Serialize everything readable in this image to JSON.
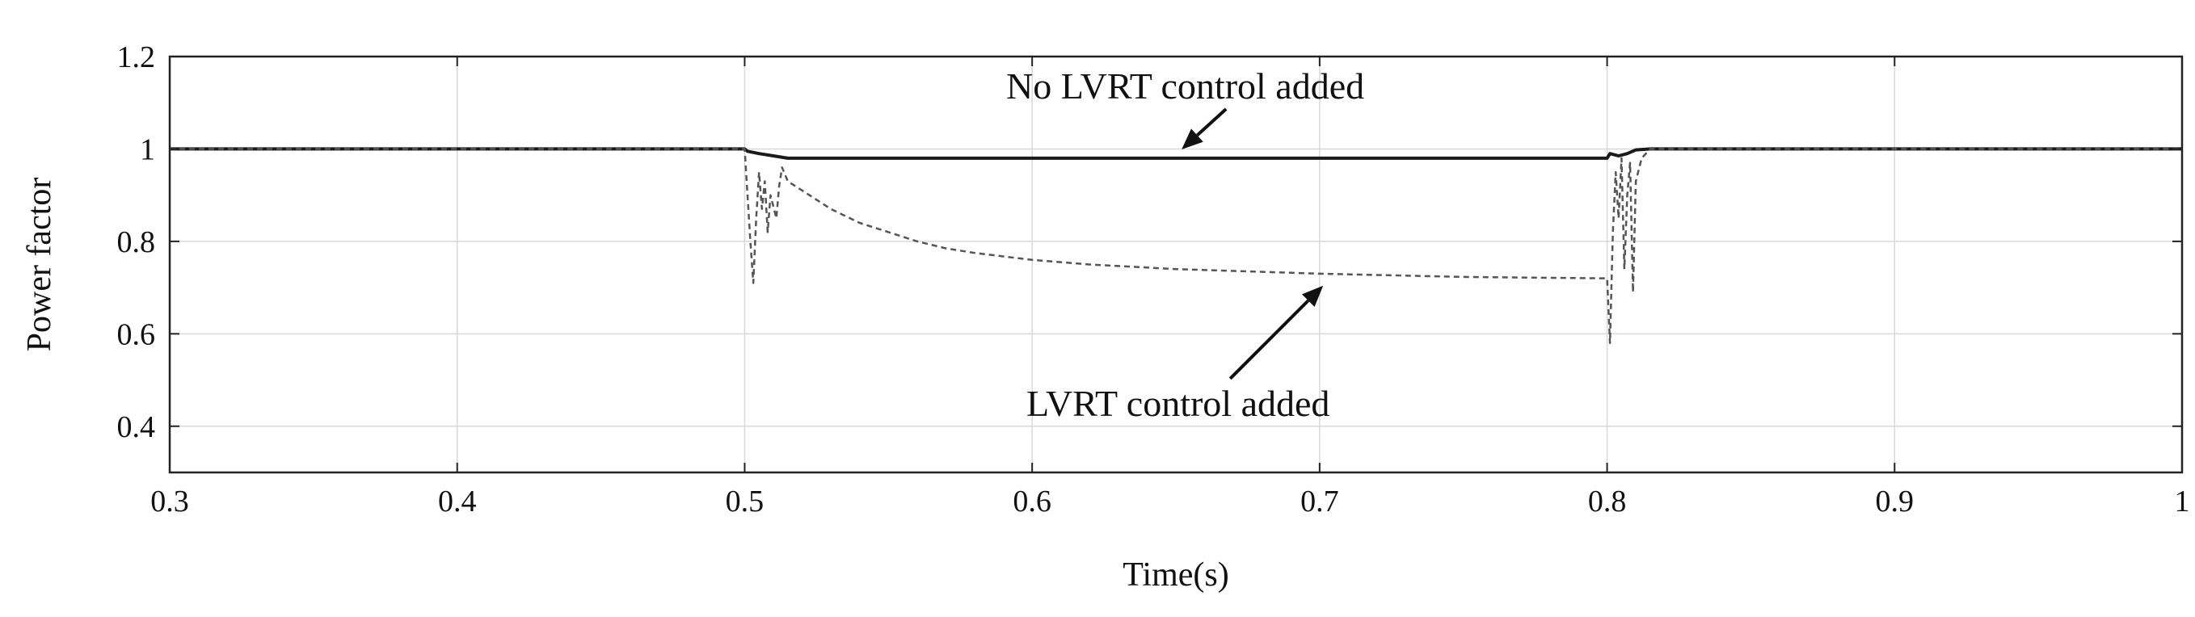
{
  "chart_data": {
    "type": "line",
    "title": "",
    "xlabel": "Time(s)",
    "ylabel": "Power factor",
    "xlim": [
      0.3,
      1.0
    ],
    "ylim": [
      0.3,
      1.2
    ],
    "xticks": [
      0.3,
      0.4,
      0.5,
      0.6,
      0.7,
      0.8,
      0.9,
      1.0
    ],
    "xtick_labels": [
      "0.3",
      "0.4",
      "0.5",
      "0.6",
      "0.7",
      "0.8",
      "0.9",
      "1"
    ],
    "yticks": [
      0.4,
      0.6,
      0.8,
      1.0,
      1.2
    ],
    "ytick_labels": [
      "0.4",
      "0.6",
      "0.8",
      "1",
      "1.2"
    ],
    "grid": true,
    "series": [
      {
        "style": "solid",
        "color": "#1a1a1a",
        "points": [
          [
            0.3,
            1.0
          ],
          [
            0.5,
            1.0
          ],
          [
            0.501,
            0.995
          ],
          [
            0.505,
            0.99
          ],
          [
            0.51,
            0.985
          ],
          [
            0.515,
            0.98
          ],
          [
            0.6,
            0.98
          ],
          [
            0.7,
            0.98
          ],
          [
            0.8,
            0.98
          ],
          [
            0.801,
            0.99
          ],
          [
            0.804,
            0.985
          ],
          [
            0.807,
            0.99
          ],
          [
            0.81,
            0.998
          ],
          [
            0.815,
            1.0
          ],
          [
            1.0,
            1.0
          ]
        ]
      },
      {
        "style": "dashed",
        "color": "#555555",
        "points": [
          [
            0.3,
            1.0
          ],
          [
            0.5,
            1.0
          ],
          [
            0.502,
            0.8
          ],
          [
            0.503,
            0.71
          ],
          [
            0.504,
            0.85
          ],
          [
            0.505,
            0.95
          ],
          [
            0.506,
            0.87
          ],
          [
            0.507,
            0.93
          ],
          [
            0.508,
            0.82
          ],
          [
            0.509,
            0.9
          ],
          [
            0.511,
            0.85
          ],
          [
            0.512,
            0.92
          ],
          [
            0.513,
            0.96
          ],
          [
            0.515,
            0.93
          ],
          [
            0.52,
            0.91
          ],
          [
            0.53,
            0.87
          ],
          [
            0.54,
            0.84
          ],
          [
            0.55,
            0.82
          ],
          [
            0.56,
            0.8
          ],
          [
            0.57,
            0.785
          ],
          [
            0.58,
            0.775
          ],
          [
            0.6,
            0.76
          ],
          [
            0.62,
            0.75
          ],
          [
            0.65,
            0.74
          ],
          [
            0.7,
            0.73
          ],
          [
            0.75,
            0.723
          ],
          [
            0.8,
            0.72
          ],
          [
            0.801,
            0.58
          ],
          [
            0.802,
            0.82
          ],
          [
            0.803,
            0.95
          ],
          [
            0.804,
            0.85
          ],
          [
            0.805,
            0.98
          ],
          [
            0.806,
            0.74
          ],
          [
            0.807,
            0.9
          ],
          [
            0.808,
            0.97
          ],
          [
            0.809,
            0.69
          ],
          [
            0.81,
            0.93
          ],
          [
            0.812,
            0.98
          ],
          [
            0.815,
            1.0
          ],
          [
            1.0,
            1.0
          ]
        ]
      }
    ],
    "annotations": [
      {
        "text": "No LVRT control added",
        "data_x": 0.652,
        "data_y": 0.985
      },
      {
        "text": "LVRT control added",
        "data_x": 0.697,
        "data_y": 0.725
      }
    ]
  }
}
